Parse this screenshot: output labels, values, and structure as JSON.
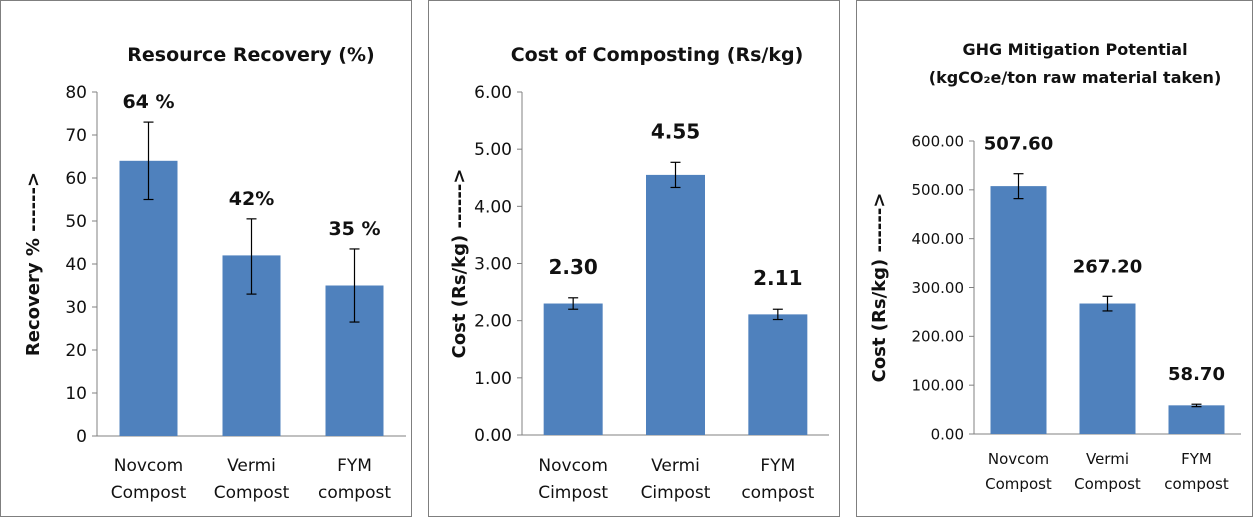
{
  "chart_data": [
    {
      "type": "bar",
      "title": "Resource Recovery (%)",
      "ylabel": "Recovery % ------>",
      "xlabel": "",
      "categories": [
        [
          "Novcom",
          "Compost"
        ],
        [
          "Vermi",
          "Compost"
        ],
        [
          "FYM",
          "compost"
        ]
      ],
      "values": [
        64,
        42,
        35
      ],
      "data_labels": [
        "64 %",
        "42%",
        "35 %"
      ],
      "error_bars": [
        [
          55,
          73
        ],
        [
          33,
          50.5
        ],
        [
          26.5,
          43.5
        ]
      ],
      "ylim": [
        0,
        80
      ],
      "yticks": [
        0,
        10,
        20,
        30,
        40,
        50,
        60,
        70,
        80
      ],
      "ytick_labels": [
        "0",
        "10",
        "20",
        "30",
        "40",
        "50",
        "60",
        "70",
        "80"
      ],
      "grid": false,
      "legend": "none",
      "bar_color": "#4f81bd"
    },
    {
      "type": "bar",
      "title": "Cost of Composting (Rs/kg)",
      "ylabel": "Cost (Rs/kg) ------>",
      "xlabel": "",
      "categories": [
        [
          "Novcom",
          "Cimpost"
        ],
        [
          "Vermi",
          "Cimpost"
        ],
        [
          "FYM",
          "compost"
        ]
      ],
      "values": [
        2.3,
        4.55,
        2.11
      ],
      "data_labels": [
        "2.30",
        "4.55",
        "2.11"
      ],
      "error_bars": [
        [
          2.2,
          2.4
        ],
        [
          4.33,
          4.77
        ],
        [
          2.02,
          2.2
        ]
      ],
      "ylim": [
        0,
        6
      ],
      "yticks": [
        0,
        1,
        2,
        3,
        4,
        5,
        6
      ],
      "ytick_labels": [
        "0.00",
        "1.00",
        "2.00",
        "3.00",
        "4.00",
        "5.00",
        "6.00"
      ],
      "grid": false,
      "legend": "none",
      "bar_color": "#4f81bd"
    },
    {
      "type": "bar",
      "title": "GHG Mitigation Potential",
      "subtitle": "(kgCO₂e/ton raw  material taken)",
      "ylabel": "Cost (Rs/kg) ------>",
      "xlabel": "",
      "categories": [
        [
          "Novcom",
          "Compost"
        ],
        [
          "Vermi",
          "Compost"
        ],
        [
          "FYM",
          "compost"
        ]
      ],
      "values": [
        507.6,
        267.2,
        58.7
      ],
      "data_labels": [
        "507.60",
        "267.20",
        "58.70"
      ],
      "error_bars": [
        [
          482,
          533
        ],
        [
          252,
          282
        ],
        [
          56,
          61
        ]
      ],
      "ylim": [
        0,
        600
      ],
      "yticks": [
        0,
        100,
        200,
        300,
        400,
        500,
        600
      ],
      "ytick_labels": [
        "0.00",
        "100.00",
        "200.00",
        "300.00",
        "400.00",
        "500.00",
        "600.00"
      ],
      "grid": false,
      "legend": "none",
      "bar_color": "#4f81bd"
    }
  ]
}
